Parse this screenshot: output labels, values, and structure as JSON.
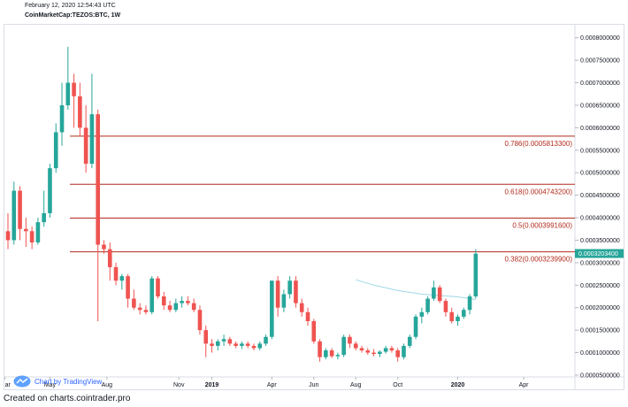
{
  "header": {
    "date": "February 12, 2020 12:54:43 UTC",
    "symbol": "CoinMarketCap:TEZOS:BTC, 1W"
  },
  "badge": {
    "text": "Chart by TradingView",
    "icon": "tradingview-cloud-icon"
  },
  "footer": {
    "text": "Created on charts.cointrader.pro"
  },
  "colors": {
    "up": "#26a69a",
    "down": "#ef5350",
    "fib_line": "#b22b1d",
    "fib_text": "#b22b1d",
    "ma": "#9ed9e6",
    "price_tag": "#26a69a",
    "badge": "#2962ff"
  },
  "chart_data": {
    "type": "candlestick",
    "title": "CoinMarketCap:TEZOS:BTC, 1W",
    "x_axis": {
      "tick_labels": [
        "ar",
        "May",
        "Aug",
        "Nov",
        "2019",
        "Apr",
        "Jun",
        "Aug",
        "Oct",
        "2020",
        "Apr"
      ],
      "bold_labels": [
        "2019",
        "2020"
      ]
    },
    "y_axis": {
      "range": [
        4.6e-05,
        0.000825
      ],
      "side": "right",
      "tick_values": [
        5e-05,
        0.0001,
        0.00015,
        0.0002,
        0.00025,
        0.0003,
        0.00035,
        0.0004,
        0.00045,
        0.0005,
        0.00055,
        0.0006,
        0.00065,
        0.0007,
        0.00075,
        0.0008
      ],
      "tick_labels": [
        "0.0000500000",
        "0.0001000000",
        "0.0001500000",
        "0.0002000000",
        "0.0002500000",
        "0.0003000000",
        "0.0003500000",
        "0.0004000000",
        "0.0004500000",
        "0.0005000000",
        "0.0005500000",
        "0.0006000000",
        "0.0006500000",
        "0.0007000000",
        "0.0007500000",
        "0.0008000000"
      ]
    },
    "last_price": {
      "value": 0.00032034,
      "label": "0.0003203400"
    },
    "fib_levels": [
      {
        "label": "0.786(0.0005813300)",
        "value": 0.00058133
      },
      {
        "label": "0.618(0.0004743200)",
        "value": 0.00047432
      },
      {
        "label": "0.5(0.0003991600)",
        "value": 0.00039916
      },
      {
        "label": "0.382(0.0003239900)",
        "value": 0.00032399
      }
    ],
    "candles": [
      {
        "o": 0.00037,
        "h": 0.00041,
        "l": 0.00033,
        "c": 0.00035
      },
      {
        "o": 0.00035,
        "h": 0.00048,
        "l": 0.00034,
        "c": 0.00046
      },
      {
        "o": 0.00046,
        "h": 0.00047,
        "l": 0.00035,
        "c": 0.000375
      },
      {
        "o": 0.000375,
        "h": 0.0004,
        "l": 0.000335,
        "c": 0.00037
      },
      {
        "o": 0.00037,
        "h": 0.00038,
        "l": 0.00033,
        "c": 0.000345
      },
      {
        "o": 0.000345,
        "h": 0.0004,
        "l": 0.00034,
        "c": 0.00039
      },
      {
        "o": 0.00039,
        "h": 0.00046,
        "l": 0.00038,
        "c": 0.00041
      },
      {
        "o": 0.00041,
        "h": 0.00052,
        "l": 0.0004,
        "c": 0.00051
      },
      {
        "o": 0.00051,
        "h": 0.00061,
        "l": 0.0005,
        "c": 0.00059
      },
      {
        "o": 0.00059,
        "h": 0.0007,
        "l": 0.00056,
        "c": 0.00065
      },
      {
        "o": 0.00065,
        "h": 0.00078,
        "l": 0.00064,
        "c": 0.0007
      },
      {
        "o": 0.0007,
        "h": 0.00072,
        "l": 0.0006,
        "c": 0.00067
      },
      {
        "o": 0.00067,
        "h": 0.0007,
        "l": 0.00058,
        "c": 0.0006
      },
      {
        "o": 0.0006,
        "h": 0.00065,
        "l": 0.0005,
        "c": 0.00052
      },
      {
        "o": 0.00052,
        "h": 0.00072,
        "l": 0.00051,
        "c": 0.00063
      },
      {
        "o": 0.00063,
        "h": 0.00064,
        "l": 0.00017,
        "c": 0.00034
      },
      {
        "o": 0.00034,
        "h": 0.00035,
        "l": 0.00032,
        "c": 0.00033
      },
      {
        "o": 0.00033,
        "h": 0.000345,
        "l": 0.00026,
        "c": 0.00029
      },
      {
        "o": 0.00029,
        "h": 0.0003,
        "l": 0.00025,
        "c": 0.00026
      },
      {
        "o": 0.00026,
        "h": 0.000275,
        "l": 0.00024,
        "c": 0.00027
      },
      {
        "o": 0.00027,
        "h": 0.000275,
        "l": 0.0002,
        "c": 0.00022
      },
      {
        "o": 0.00022,
        "h": 0.00024,
        "l": 0.000195,
        "c": 0.0002
      },
      {
        "o": 0.0002,
        "h": 0.00021,
        "l": 0.000185,
        "c": 0.000195
      },
      {
        "o": 0.000195,
        "h": 0.000205,
        "l": 0.000185,
        "c": 0.00019
      },
      {
        "o": 0.00019,
        "h": 0.00027,
        "l": 0.000185,
        "c": 0.000265
      },
      {
        "o": 0.000265,
        "h": 0.00027,
        "l": 0.00022,
        "c": 0.000225
      },
      {
        "o": 0.000225,
        "h": 0.000235,
        "l": 0.000195,
        "c": 0.000205
      },
      {
        "o": 0.000205,
        "h": 0.000215,
        "l": 0.00019,
        "c": 0.000195
      },
      {
        "o": 0.000195,
        "h": 0.00022,
        "l": 0.00019,
        "c": 0.00021
      },
      {
        "o": 0.00021,
        "h": 0.000225,
        "l": 0.0002,
        "c": 0.000215
      },
      {
        "o": 0.000215,
        "h": 0.000225,
        "l": 0.000205,
        "c": 0.00021
      },
      {
        "o": 0.00021,
        "h": 0.00022,
        "l": 0.00019,
        "c": 0.000195
      },
      {
        "o": 0.000195,
        "h": 0.000205,
        "l": 0.00014,
        "c": 0.00015
      },
      {
        "o": 0.00015,
        "h": 0.00016,
        "l": 9e-05,
        "c": 0.00012
      },
      {
        "o": 0.00012,
        "h": 0.00013,
        "l": 0.0001,
        "c": 0.000115
      },
      {
        "o": 0.000115,
        "h": 0.00013,
        "l": 0.000105,
        "c": 0.000125
      },
      {
        "o": 0.000125,
        "h": 0.00014,
        "l": 0.000115,
        "c": 0.00013
      },
      {
        "o": 0.00013,
        "h": 0.000135,
        "l": 0.000115,
        "c": 0.00012
      },
      {
        "o": 0.00012,
        "h": 0.000125,
        "l": 0.00011,
        "c": 0.000115
      },
      {
        "o": 0.000115,
        "h": 0.000125,
        "l": 0.000108,
        "c": 0.00012
      },
      {
        "o": 0.00012,
        "h": 0.000125,
        "l": 0.00011,
        "c": 0.000115
      },
      {
        "o": 0.000115,
        "h": 0.00012,
        "l": 0.000105,
        "c": 0.00011
      },
      {
        "o": 0.00011,
        "h": 0.000125,
        "l": 0.000105,
        "c": 0.00012
      },
      {
        "o": 0.00012,
        "h": 0.00014,
        "l": 0.000115,
        "c": 0.000135
      },
      {
        "o": 0.000135,
        "h": 0.00026,
        "l": 0.00013,
        "c": 0.00026
      },
      {
        "o": 0.00026,
        "h": 0.00027,
        "l": 0.00018,
        "c": 0.0002
      },
      {
        "o": 0.0002,
        "h": 0.00024,
        "l": 0.00019,
        "c": 0.00023
      },
      {
        "o": 0.00023,
        "h": 0.00027,
        "l": 0.00022,
        "c": 0.00026
      },
      {
        "o": 0.00026,
        "h": 0.00027,
        "l": 0.0002,
        "c": 0.00021
      },
      {
        "o": 0.00021,
        "h": 0.00022,
        "l": 0.00018,
        "c": 0.00019
      },
      {
        "o": 0.00019,
        "h": 0.0002,
        "l": 0.00016,
        "c": 0.00017
      },
      {
        "o": 0.00017,
        "h": 0.000175,
        "l": 0.00012,
        "c": 0.000125
      },
      {
        "o": 0.000125,
        "h": 0.00013,
        "l": 8e-05,
        "c": 9e-05
      },
      {
        "o": 9e-05,
        "h": 0.00011,
        "l": 8.5e-05,
        "c": 0.000105
      },
      {
        "o": 0.000105,
        "h": 0.00011,
        "l": 8.8e-05,
        "c": 9.2e-05
      },
      {
        "o": 9.2e-05,
        "h": 0.0001,
        "l": 8.5e-05,
        "c": 9.5e-05
      },
      {
        "o": 9.5e-05,
        "h": 0.00014,
        "l": 9e-05,
        "c": 0.000135
      },
      {
        "o": 0.000135,
        "h": 0.00014,
        "l": 0.00011,
        "c": 0.00012
      },
      {
        "o": 0.00012,
        "h": 0.000125,
        "l": 0.000105,
        "c": 0.00011
      },
      {
        "o": 0.00011,
        "h": 0.000115,
        "l": 0.0001,
        "c": 0.000105
      },
      {
        "o": 0.000105,
        "h": 0.00011,
        "l": 9.5e-05,
        "c": 0.0001
      },
      {
        "o": 0.0001,
        "h": 0.000108,
        "l": 9.2e-05,
        "c": 9.7e-05
      },
      {
        "o": 9.7e-05,
        "h": 0.000105,
        "l": 9e-05,
        "c": 0.000102
      },
      {
        "o": 0.000102,
        "h": 0.000115,
        "l": 9.8e-05,
        "c": 0.00011
      },
      {
        "o": 0.00011,
        "h": 0.000115,
        "l": 0.0001,
        "c": 0.000105
      },
      {
        "o": 0.000105,
        "h": 0.00011,
        "l": 8e-05,
        "c": 9e-05
      },
      {
        "o": 9e-05,
        "h": 0.00012,
        "l": 8.5e-05,
        "c": 0.000115
      },
      {
        "o": 0.000115,
        "h": 0.00014,
        "l": 0.00011,
        "c": 0.000135
      },
      {
        "o": 0.000135,
        "h": 0.000185,
        "l": 0.00013,
        "c": 0.00018
      },
      {
        "o": 0.00018,
        "h": 0.0002,
        "l": 0.000165,
        "c": 0.00019
      },
      {
        "o": 0.00019,
        "h": 0.000225,
        "l": 0.000185,
        "c": 0.00022
      },
      {
        "o": 0.00022,
        "h": 0.00026,
        "l": 0.000215,
        "c": 0.000245
      },
      {
        "o": 0.000245,
        "h": 0.00025,
        "l": 0.00021,
        "c": 0.000215
      },
      {
        "o": 0.000215,
        "h": 0.00022,
        "l": 0.00018,
        "c": 0.00019
      },
      {
        "o": 0.00019,
        "h": 0.0002,
        "l": 0.000165,
        "c": 0.00017
      },
      {
        "o": 0.00017,
        "h": 0.000185,
        "l": 0.00016,
        "c": 0.00018
      },
      {
        "o": 0.00018,
        "h": 0.0002,
        "l": 0.000175,
        "c": 0.000195
      },
      {
        "o": 0.000195,
        "h": 0.00023,
        "l": 0.000185,
        "c": 0.000225
      },
      {
        "o": 0.000225,
        "h": 0.00033,
        "l": 0.00022,
        "c": 0.00032
      }
    ],
    "moving_average": {
      "start_index": 58,
      "values": [
        0.000262,
        0.000258,
        0.000254,
        0.00025,
        0.000247,
        0.000244,
        0.000241,
        0.000238,
        0.000236,
        0.000234,
        0.000232,
        0.00023,
        0.000229,
        0.000228,
        0.000227,
        0.000226,
        0.000225,
        0.000224,
        0.000222,
        0.00022,
        0.000218
      ]
    }
  }
}
